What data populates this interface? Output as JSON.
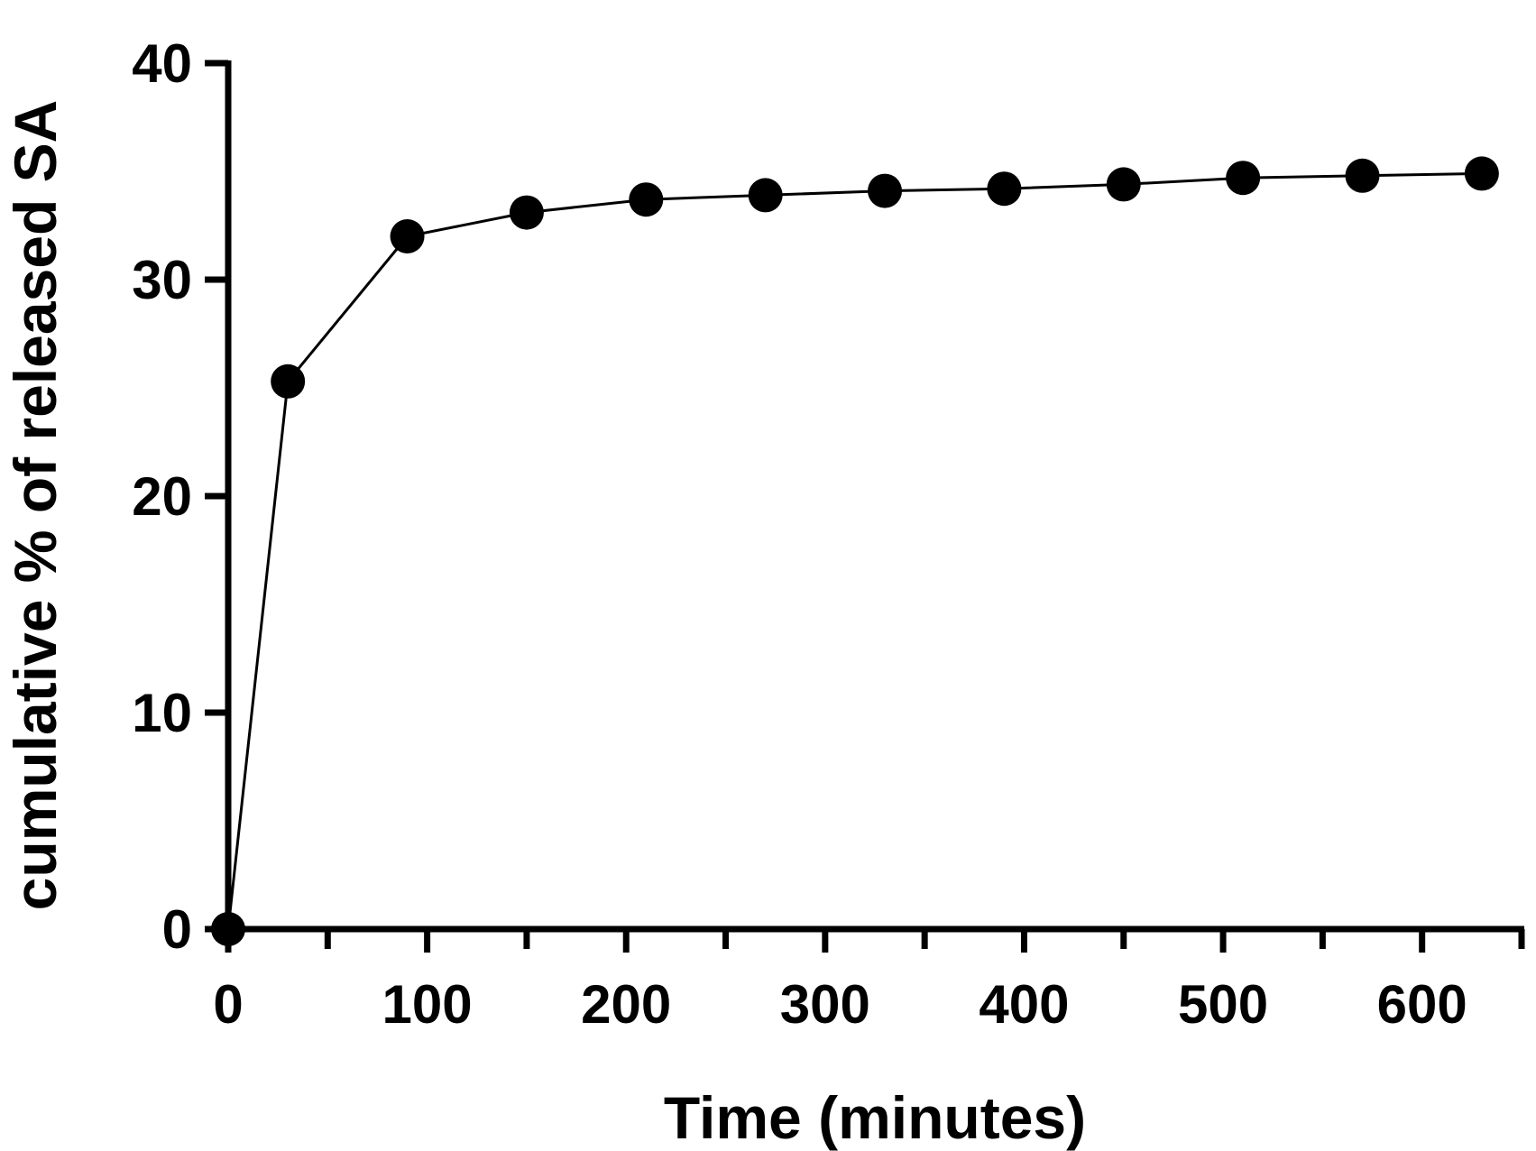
{
  "chart_data": {
    "type": "line",
    "title": "",
    "xlabel": "Time (minutes)",
    "ylabel": "cumulative % of released SA",
    "xlim": [
      0,
      650
    ],
    "ylim": [
      0,
      40
    ],
    "x_ticks": [
      0,
      100,
      200,
      300,
      400,
      500,
      600
    ],
    "x_minor_ticks": [
      50,
      150,
      250,
      350,
      450,
      550,
      650
    ],
    "y_ticks": [
      0,
      10,
      20,
      30,
      40
    ],
    "grid": false,
    "legend": "none",
    "series": [
      {
        "x": [
          0,
          30,
          90,
          150,
          210,
          270,
          330,
          390,
          450,
          510,
          570,
          630
        ],
        "y": [
          0,
          25.3,
          32.0,
          33.1,
          33.7,
          33.9,
          34.1,
          34.2,
          34.4,
          34.7,
          34.8,
          34.9
        ],
        "color": "#000000",
        "marker": "circle"
      }
    ]
  }
}
